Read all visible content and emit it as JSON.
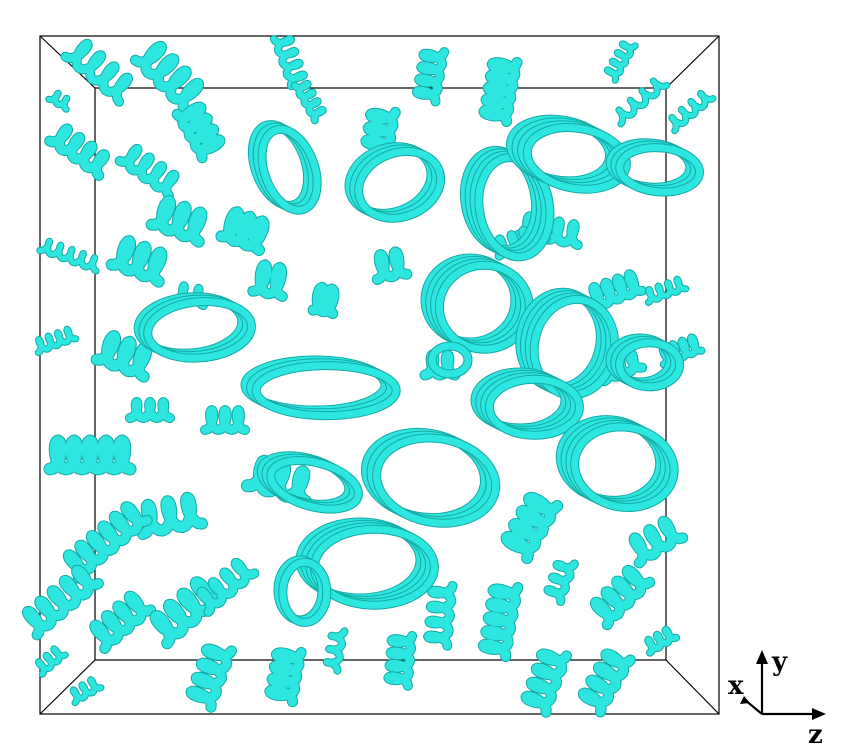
{
  "figure": {
    "tube_color": "#2ee6e0",
    "tube_shadow": "#15a9a4",
    "box_color": "#000000"
  },
  "axes": {
    "x_label": "x",
    "y_label": "y",
    "z_label": "z"
  }
}
